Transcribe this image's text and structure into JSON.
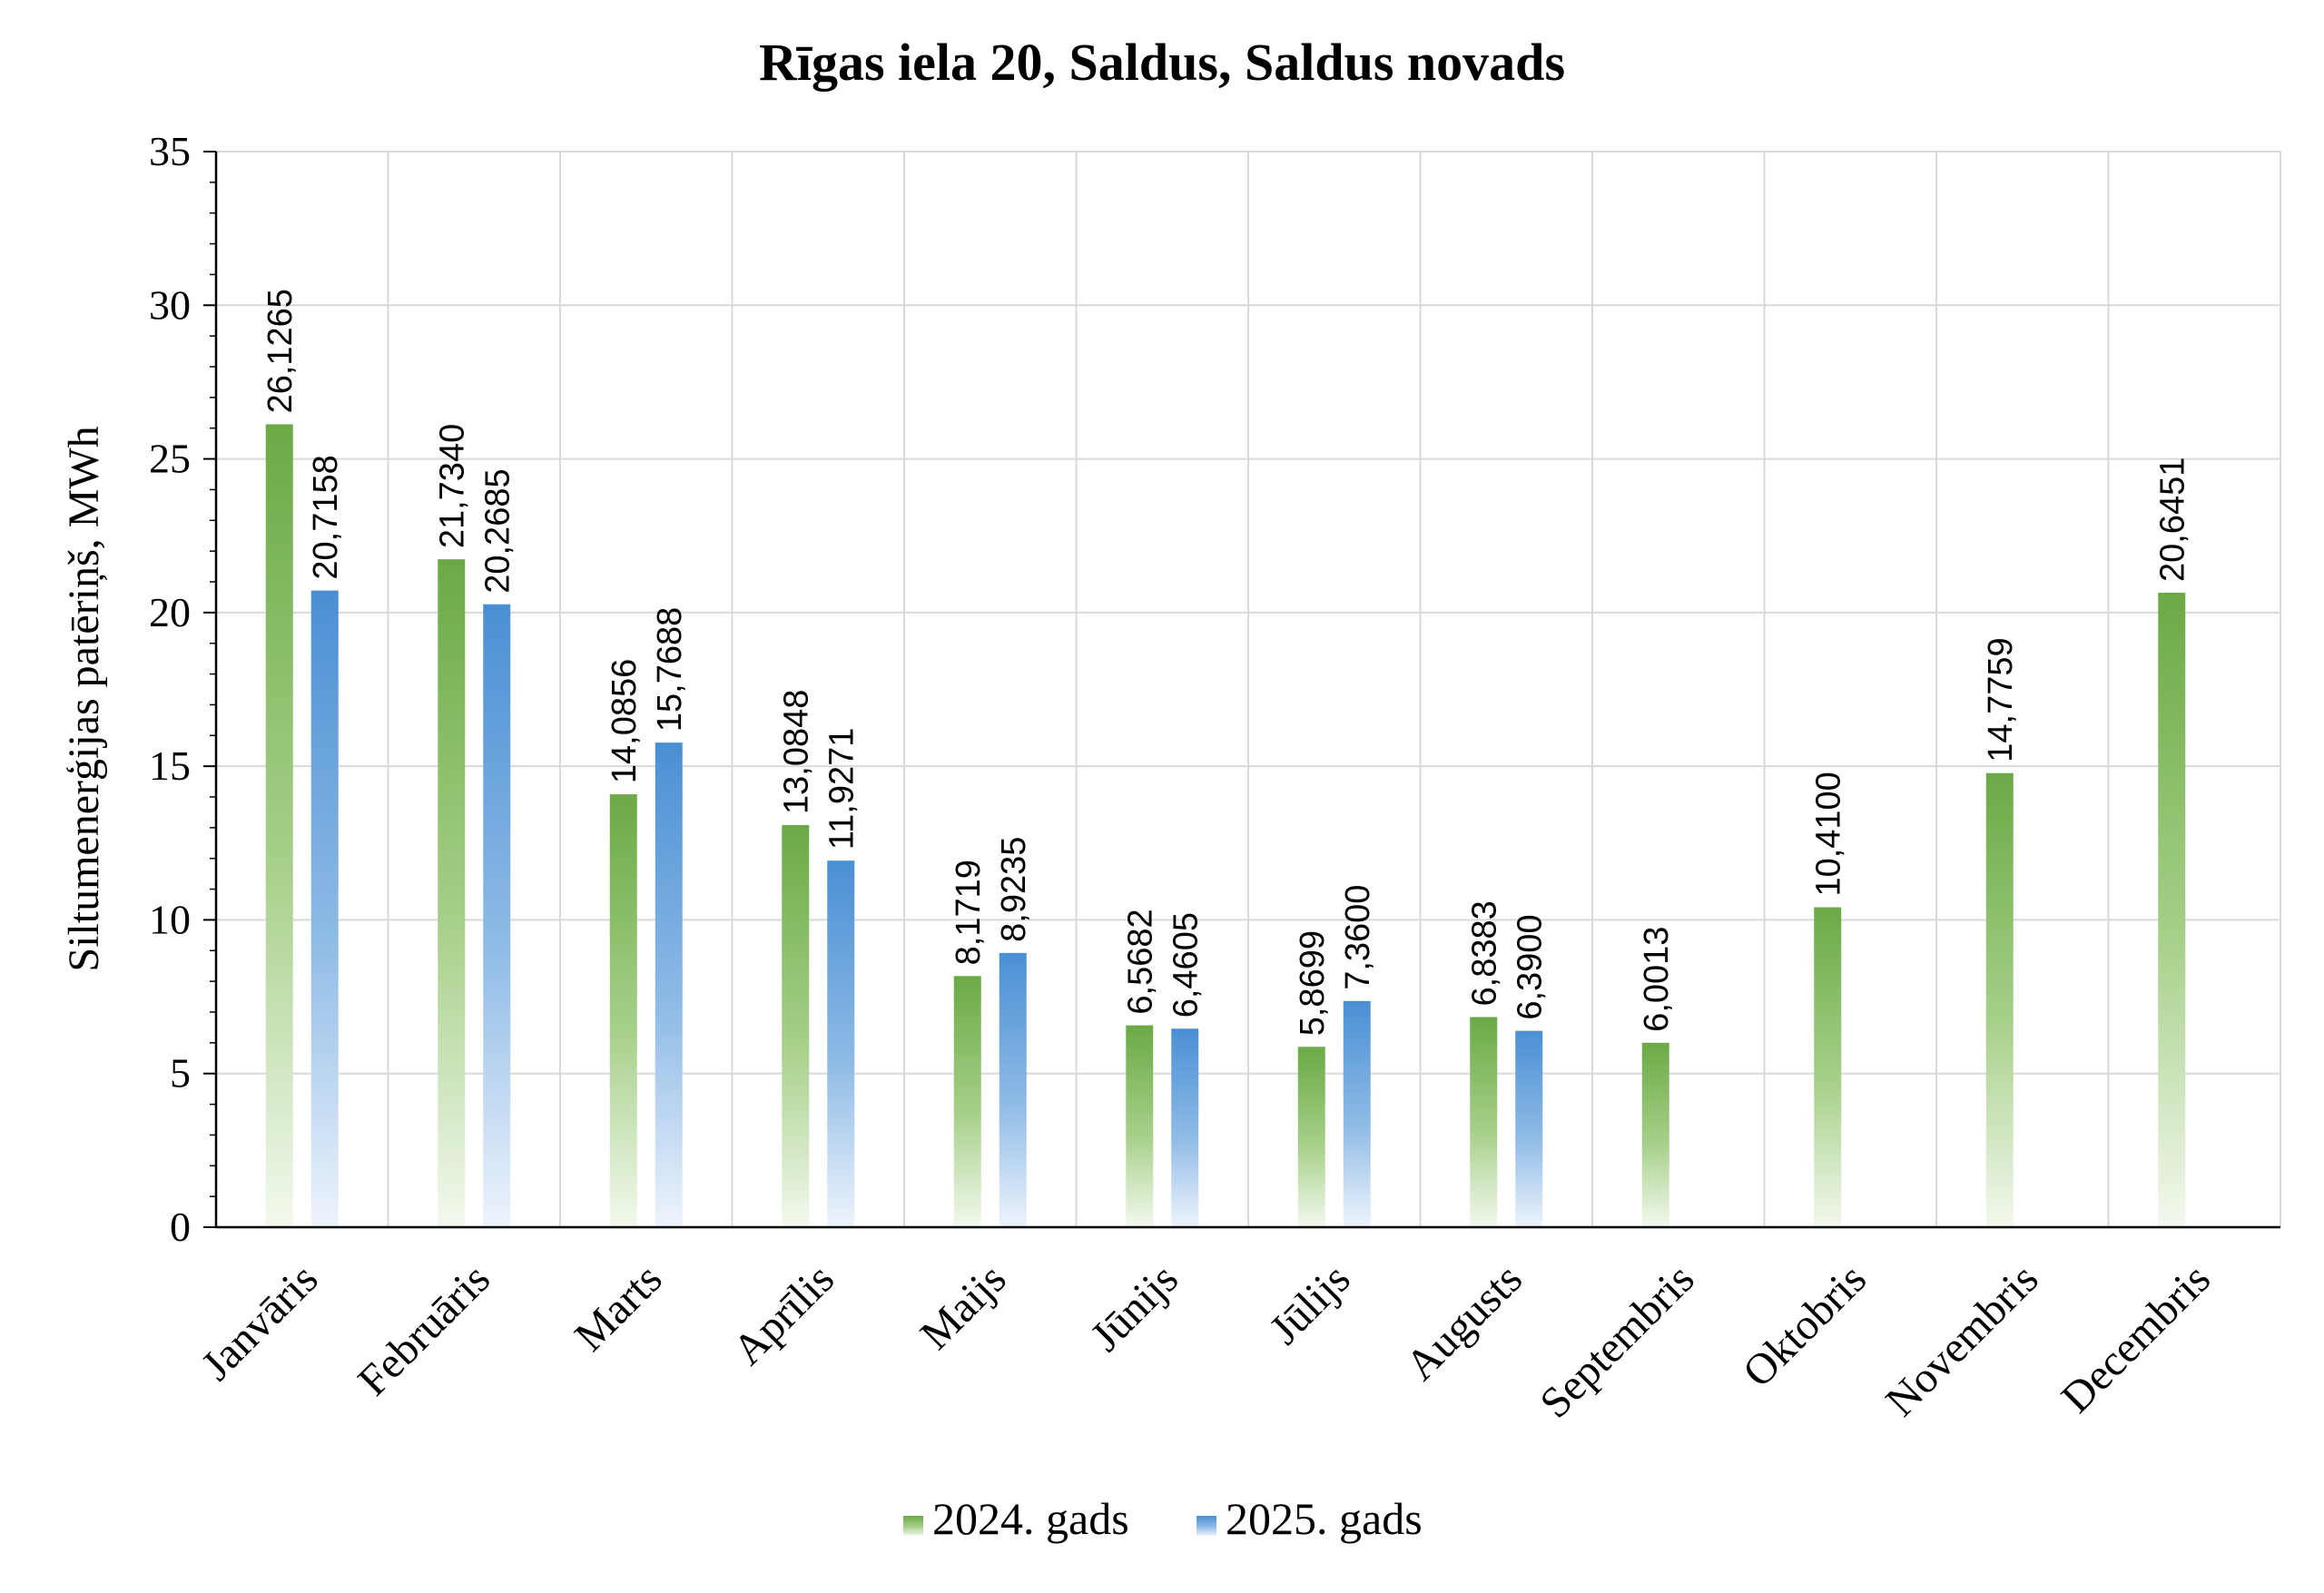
{
  "chart_data": {
    "type": "bar",
    "title": "Rīgas iela 20, Saldus, Saldus novads",
    "ylabel": "Siltumenerģijas patēriņš, MWh",
    "xlabel": "",
    "ylim": [
      0,
      35
    ],
    "yticks": [
      0,
      5,
      10,
      15,
      20,
      25,
      30,
      35
    ],
    "grid": true,
    "legend_position": "bottom",
    "categories": [
      "Janvāris",
      "Februāris",
      "Marts",
      "Aprīlis",
      "Maijs",
      "Jūnijs",
      "Jūlijs",
      "Augusts",
      "Septembris",
      "Oktobris",
      "Novembris",
      "Decembris"
    ],
    "series": [
      {
        "name": "2024. gads",
        "color": "#6aa84f",
        "values": [
          26.1265,
          21.734,
          14.0856,
          13.0848,
          8.1719,
          6.5682,
          5.8699,
          6.8383,
          6.0013,
          10.41,
          14.7759,
          20.6451
        ],
        "labels": [
          "26,1265",
          "21,7340",
          "14,0856",
          "13,0848",
          "8,1719",
          "6,5682",
          "5,8699",
          "6,8383",
          "6,0013",
          "10,4100",
          "14,7759",
          "20,6451"
        ]
      },
      {
        "name": "2025. gads",
        "color": "#4a8fd4",
        "values": [
          20.7158,
          20.2685,
          15.7688,
          11.9271,
          8.9235,
          6.4605,
          7.36,
          6.39,
          null,
          null,
          null,
          null
        ],
        "labels": [
          "20,7158",
          "20,2685",
          "15,7688",
          "11,9271",
          "8,9235",
          "6,4605",
          "7,3600",
          "6,3900",
          null,
          null,
          null,
          null
        ]
      }
    ]
  }
}
